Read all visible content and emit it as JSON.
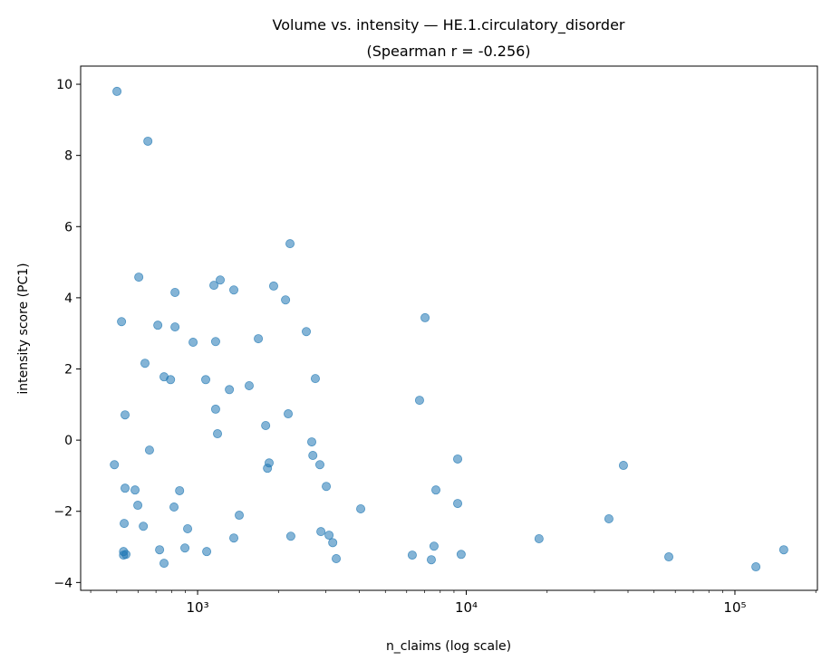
{
  "chart_data": {
    "type": "scatter",
    "title": "Volume vs. intensity — HE.1.circulatory_disorder",
    "subtitle": "(Spearman r = -0.256)",
    "xlabel": "n_claims (log scale)",
    "ylabel": "intensity score (PC1)",
    "xscale": "log",
    "xlim": [
      367,
      202800
    ],
    "ylim": [
      -4.22,
      10.51
    ],
    "xticks": [
      {
        "value": 1000,
        "label": "10³"
      },
      {
        "value": 10000,
        "label": "10⁴"
      },
      {
        "value": 100000,
        "label": "10⁵"
      }
    ],
    "yticks": [
      -4,
      -2,
      0,
      2,
      4,
      6,
      8,
      10
    ],
    "grid": false,
    "color": "#1f77b4",
    "points": [
      [
        501,
        9.8
      ],
      [
        653,
        8.4
      ],
      [
        604,
        4.58
      ],
      [
        521,
        3.33
      ],
      [
        824,
        4.15
      ],
      [
        711,
        3.23
      ],
      [
        824,
        3.18
      ],
      [
        637,
        2.16
      ],
      [
        962,
        2.75
      ],
      [
        750,
        1.78
      ],
      [
        793,
        1.7
      ],
      [
        537,
        0.71
      ],
      [
        662,
        -0.28
      ],
      [
        490,
        -0.69
      ],
      [
        537,
        -1.35
      ],
      [
        585,
        -1.4
      ],
      [
        857,
        -1.42
      ],
      [
        599,
        -1.83
      ],
      [
        817,
        -1.88
      ],
      [
        533,
        -2.34
      ],
      [
        628,
        -2.42
      ],
      [
        918,
        -2.49
      ],
      [
        530,
        -3.13
      ],
      [
        530,
        -3.23
      ],
      [
        541,
        -3.21
      ],
      [
        722,
        -3.08
      ],
      [
        897,
        -3.03
      ],
      [
        750,
        -3.46
      ],
      [
        1081,
        -3.13
      ],
      [
        1150,
        4.35
      ],
      [
        1214,
        4.5
      ],
      [
        1364,
        4.22
      ],
      [
        1167,
        2.77
      ],
      [
        1072,
        1.7
      ],
      [
        1313,
        1.42
      ],
      [
        1167,
        0.87
      ],
      [
        1186,
        0.18
      ],
      [
        1556,
        1.53
      ],
      [
        1429,
        -2.11
      ],
      [
        1364,
        -2.75
      ],
      [
        1683,
        2.85
      ],
      [
        1919,
        4.33
      ],
      [
        2125,
        3.94
      ],
      [
        2208,
        5.52
      ],
      [
        1792,
        0.41
      ],
      [
        2174,
        0.74
      ],
      [
        1846,
        -0.64
      ],
      [
        1820,
        -0.79
      ],
      [
        2223,
        -2.7
      ],
      [
        2539,
        3.05
      ],
      [
        2743,
        1.73
      ],
      [
        2660,
        -0.05
      ],
      [
        2685,
        -0.43
      ],
      [
        2852,
        -0.69
      ],
      [
        3013,
        -1.3
      ],
      [
        2877,
        -2.57
      ],
      [
        3085,
        -2.67
      ],
      [
        3184,
        -2.88
      ],
      [
        3281,
        -3.33
      ],
      [
        4047,
        -1.93
      ],
      [
        7025,
        3.44
      ],
      [
        6700,
        1.12
      ],
      [
        6295,
        -3.23
      ],
      [
        7413,
        -3.36
      ],
      [
        7586,
        -2.98
      ],
      [
        7709,
        -1.4
      ],
      [
        9290,
        -0.53
      ],
      [
        9290,
        -1.78
      ],
      [
        9572,
        -3.21
      ],
      [
        18660,
        -2.77
      ],
      [
        33960,
        -2.21
      ],
      [
        38460,
        -0.71
      ],
      [
        56750,
        -3.28
      ],
      [
        119700,
        -3.56
      ],
      [
        152000,
        -3.08
      ]
    ]
  }
}
